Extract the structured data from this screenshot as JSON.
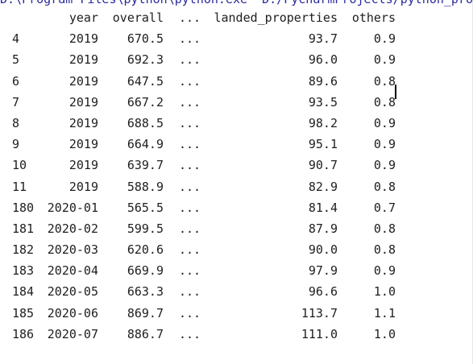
{
  "console": {
    "command_line": "D:\\Program Files\\python\\python.exe  D:/PycharmProjects/python_project/"
  },
  "table": {
    "header": {
      "year": "year",
      "overall": "overall",
      "ellipsis": "...",
      "landed_properties": "landed_properties",
      "others": "others"
    },
    "rows": [
      {
        "idx": "4",
        "year": "2019",
        "overall": "670.5",
        "ellipsis": "...",
        "landed": "93.7",
        "others": "0.9"
      },
      {
        "idx": "5",
        "year": "2019",
        "overall": "692.3",
        "ellipsis": "...",
        "landed": "96.0",
        "others": "0.9"
      },
      {
        "idx": "6",
        "year": "2019",
        "overall": "647.5",
        "ellipsis": "...",
        "landed": "89.6",
        "others": "0.8"
      },
      {
        "idx": "7",
        "year": "2019",
        "overall": "667.2",
        "ellipsis": "...",
        "landed": "93.5",
        "others": "0.8"
      },
      {
        "idx": "8",
        "year": "2019",
        "overall": "688.5",
        "ellipsis": "...",
        "landed": "98.2",
        "others": "0.9"
      },
      {
        "idx": "9",
        "year": "2019",
        "overall": "664.9",
        "ellipsis": "...",
        "landed": "95.1",
        "others": "0.9"
      },
      {
        "idx": "10",
        "year": "2019",
        "overall": "639.7",
        "ellipsis": "...",
        "landed": "90.7",
        "others": "0.9"
      },
      {
        "idx": "11",
        "year": "2019",
        "overall": "588.9",
        "ellipsis": "...",
        "landed": "82.9",
        "others": "0.8"
      },
      {
        "idx": "180",
        "year": "2020-01",
        "overall": "565.5",
        "ellipsis": "...",
        "landed": "81.4",
        "others": "0.7"
      },
      {
        "idx": "181",
        "year": "2020-02",
        "overall": "599.5",
        "ellipsis": "...",
        "landed": "87.9",
        "others": "0.8"
      },
      {
        "idx": "182",
        "year": "2020-03",
        "overall": "620.6",
        "ellipsis": "...",
        "landed": "90.0",
        "others": "0.8"
      },
      {
        "idx": "183",
        "year": "2020-04",
        "overall": "669.9",
        "ellipsis": "...",
        "landed": "97.9",
        "others": "0.9"
      },
      {
        "idx": "184",
        "year": "2020-05",
        "overall": "663.3",
        "ellipsis": "...",
        "landed": "96.6",
        "others": "1.0"
      },
      {
        "idx": "185",
        "year": "2020-06",
        "overall": "869.7",
        "ellipsis": "...",
        "landed": "113.7",
        "others": "1.1"
      },
      {
        "idx": "186",
        "year": "2020-07",
        "overall": "886.7",
        "ellipsis": "...",
        "landed": "111.0",
        "others": "1.0"
      }
    ]
  }
}
